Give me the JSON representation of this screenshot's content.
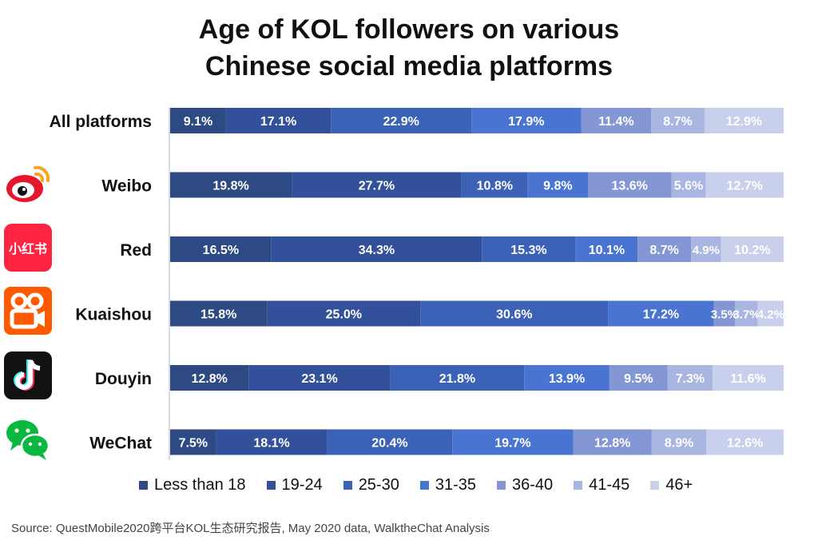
{
  "title_lines": [
    "Age of KOL followers on various",
    "Chinese social media platforms"
  ],
  "source": "Source: QuestMobile2020跨平台KOL生态研究报告, May 2020 data, WalktheChat Analysis",
  "logos": {
    "red_text": "小红书"
  },
  "colors": [
    "#2e4a85",
    "#33509a",
    "#3c62b8",
    "#4a74d1",
    "#8497d4",
    "#a9b6e1",
    "#c8d0ec"
  ],
  "chart_data": {
    "type": "bar",
    "orientation": "horizontal",
    "stacked": true,
    "unit": "%",
    "categories": [
      "All platforms",
      "Weibo",
      "Red",
      "Kuaishou",
      "Douyin",
      "WeChat"
    ],
    "series": [
      {
        "name": "Less than 18",
        "values": [
          9.1,
          19.8,
          16.5,
          15.8,
          12.8,
          7.5
        ]
      },
      {
        "name": "19-24",
        "values": [
          17.1,
          27.7,
          34.3,
          25.0,
          23.1,
          18.1
        ]
      },
      {
        "name": "25-30",
        "values": [
          22.9,
          10.8,
          15.3,
          30.6,
          21.8,
          20.4
        ]
      },
      {
        "name": "31-35",
        "values": [
          17.9,
          9.8,
          10.1,
          17.2,
          13.9,
          19.7
        ]
      },
      {
        "name": "36-40",
        "values": [
          11.4,
          13.6,
          8.7,
          3.5,
          9.5,
          12.8
        ]
      },
      {
        "name": "41-45",
        "values": [
          8.7,
          5.6,
          4.9,
          3.7,
          7.3,
          8.9
        ]
      },
      {
        "name": "46+",
        "values": [
          12.9,
          12.7,
          10.2,
          4.2,
          11.6,
          12.6
        ]
      }
    ],
    "legend_position": "bottom",
    "grid": false
  }
}
